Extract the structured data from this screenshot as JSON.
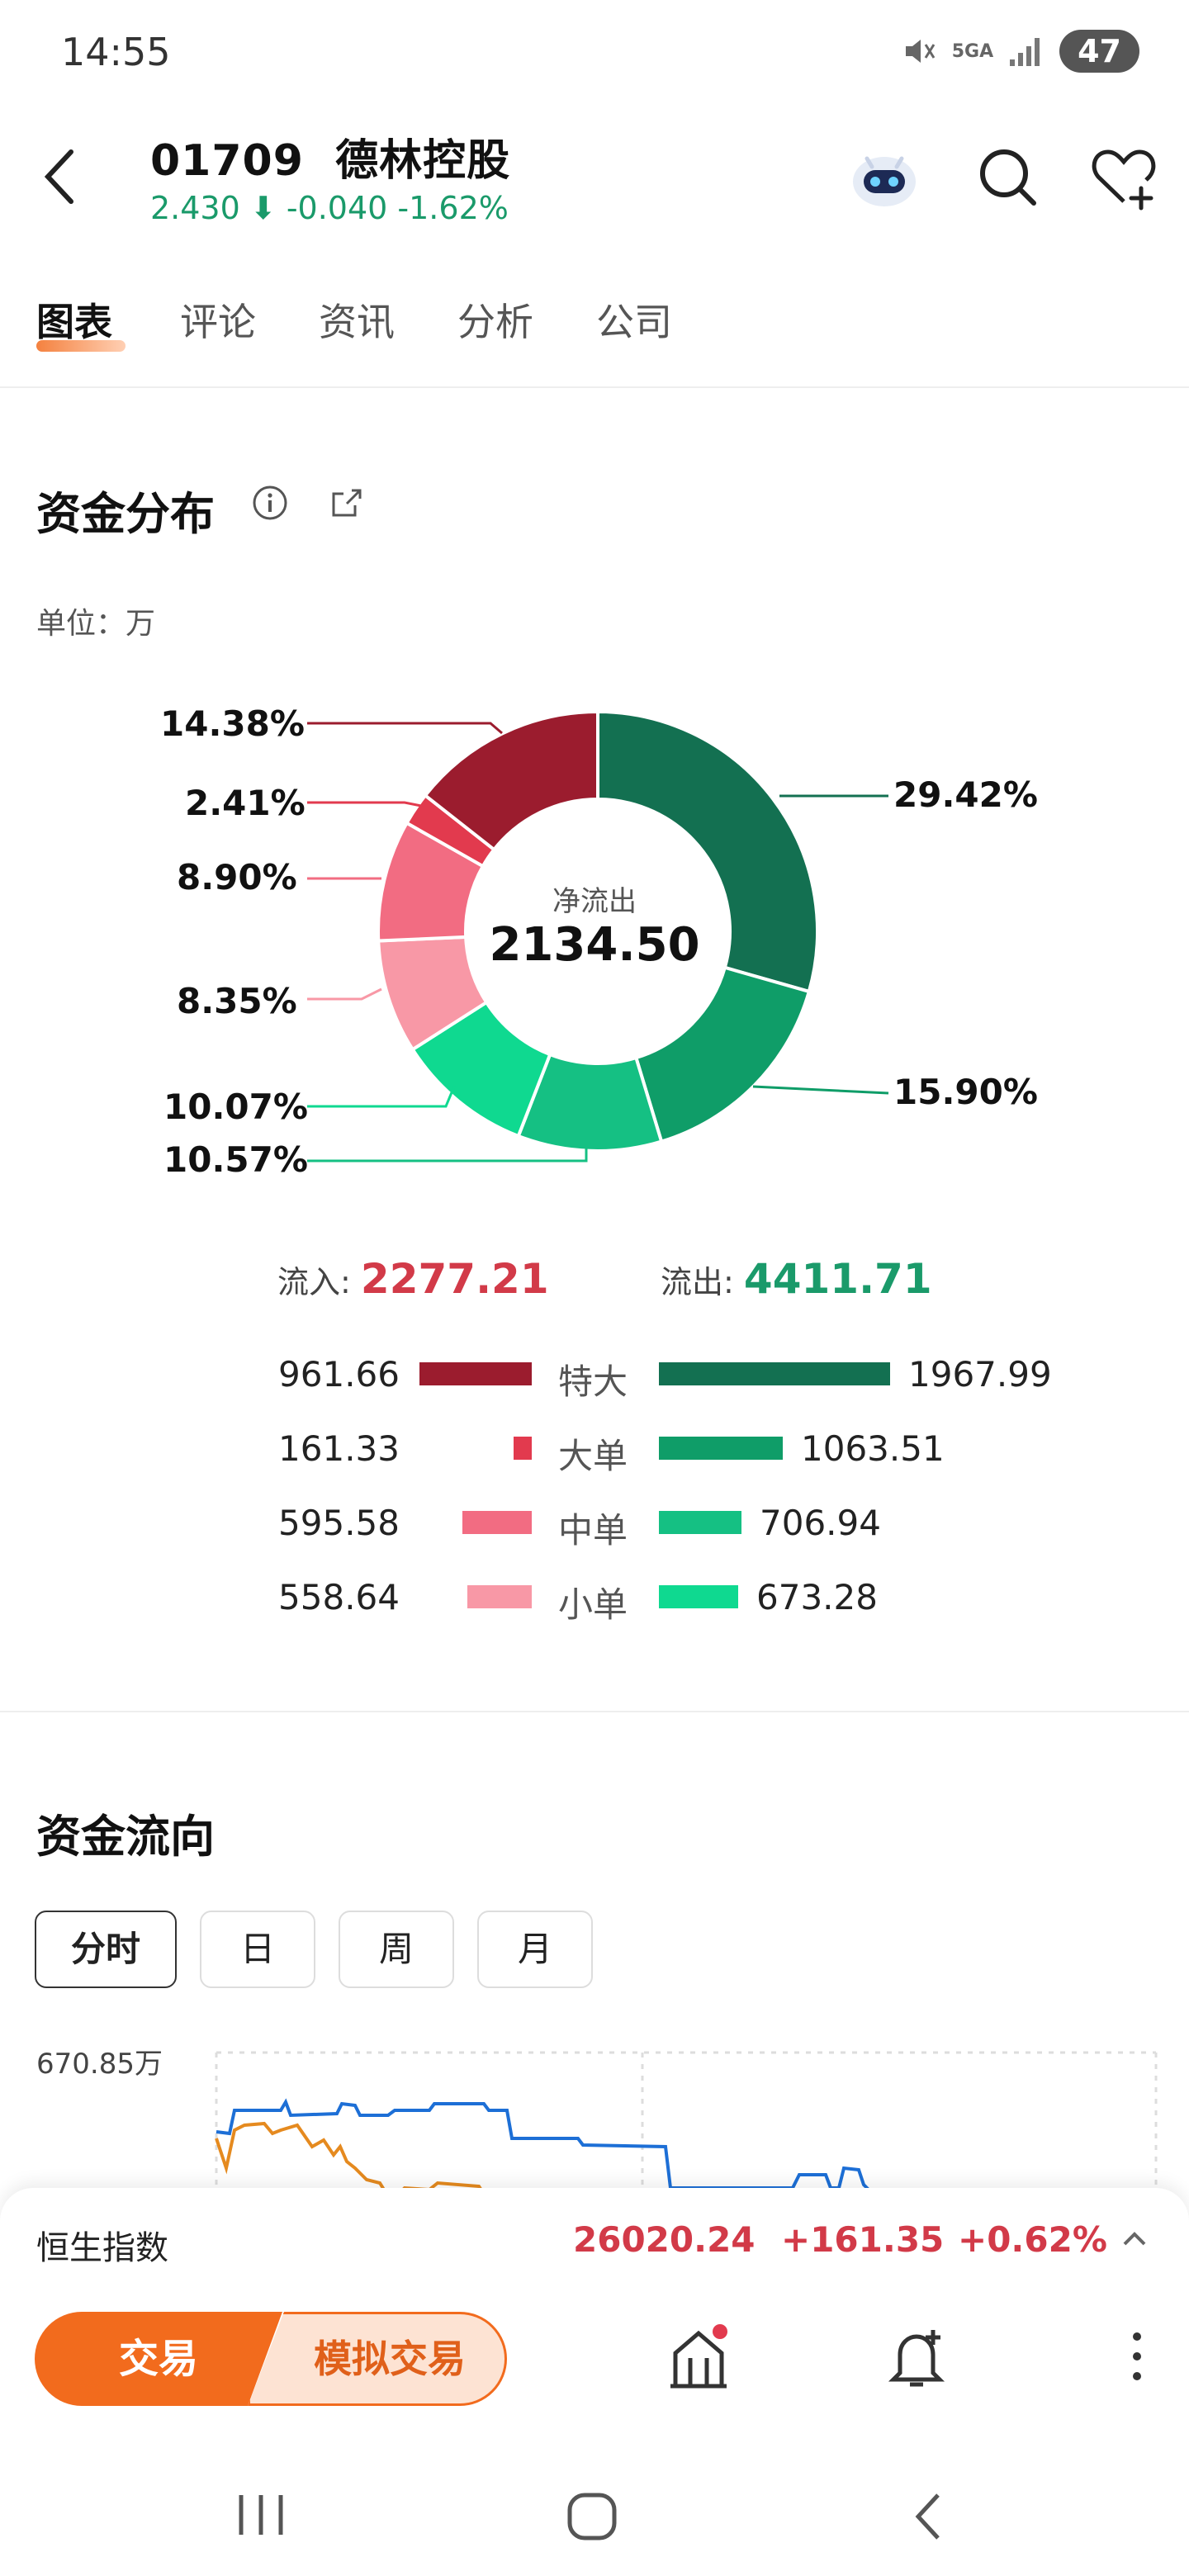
{
  "status_bar": {
    "time": "14:55",
    "network": "5GA",
    "battery": "47"
  },
  "header": {
    "code": "01709",
    "name": "德林控股",
    "price": "2.430",
    "change": "-0.040",
    "change_pct": "-1.62%",
    "icons": [
      "back-icon",
      "robot-avatar-icon",
      "search-icon",
      "heart-add-icon"
    ]
  },
  "tabs": [
    {
      "label": "图表",
      "active": true
    },
    {
      "label": "评论"
    },
    {
      "label": "资讯"
    },
    {
      "label": "分析"
    },
    {
      "label": "公司"
    }
  ],
  "distribution": {
    "title": "资金分布",
    "unit": "单位：万",
    "center_caption": "净流出",
    "center_value": "2134.50",
    "inflow_label": "流入:",
    "inflow_value": "2277.21",
    "outflow_label": "流出:",
    "outflow_value": "4411.71",
    "rows": [
      {
        "category": "特大",
        "inflow": "961.66",
        "outflow": "1967.99"
      },
      {
        "category": "大单",
        "inflow": "161.33",
        "outflow": "1063.51"
      },
      {
        "category": "中单",
        "inflow": "595.58",
        "outflow": "706.94"
      },
      {
        "category": "小单",
        "inflow": "558.64",
        "outflow": "673.28"
      }
    ],
    "colors": {
      "in_xl": "#9b1c2e",
      "in_l": "#e23a4e",
      "in_m": "#f26c82",
      "in_s": "#f898a6",
      "out_xl": "#137051",
      "out_l": "#0f9d68",
      "out_m": "#15c083",
      "out_s": "#0fd990"
    }
  },
  "chart_data": {
    "type": "pie",
    "title": "资金分布",
    "center_label": "净流出",
    "center_value": 2134.5,
    "slices": [
      {
        "label": "29.42%",
        "value": 29.42,
        "group": "流出",
        "category": "特大"
      },
      {
        "label": "15.90%",
        "value": 15.9,
        "group": "流出",
        "category": "大单"
      },
      {
        "label": "10.57%",
        "value": 10.57,
        "group": "流出",
        "category": "中单"
      },
      {
        "label": "10.07%",
        "value": 10.07,
        "group": "流出",
        "category": "小单"
      },
      {
        "label": "8.35%",
        "value": 8.35,
        "group": "流入",
        "category": "小单"
      },
      {
        "label": "8.90%",
        "value": 8.9,
        "group": "流入",
        "category": "中单"
      },
      {
        "label": "2.41%",
        "value": 2.41,
        "group": "流入",
        "category": "大单"
      },
      {
        "label": "14.38%",
        "value": 14.38,
        "group": "流入",
        "category": "特大"
      }
    ]
  },
  "flow": {
    "title": "资金流向",
    "periods": [
      "分时",
      "日",
      "周",
      "月"
    ],
    "active_period": "分时",
    "y_max_label": "670.85万"
  },
  "index_bar": {
    "name": "恒生指数",
    "value": "26020.24",
    "change": "+161.35",
    "change_pct": "+0.62%"
  },
  "bottom": {
    "trade_label": "交易",
    "sim_trade_label": "模拟交易"
  }
}
